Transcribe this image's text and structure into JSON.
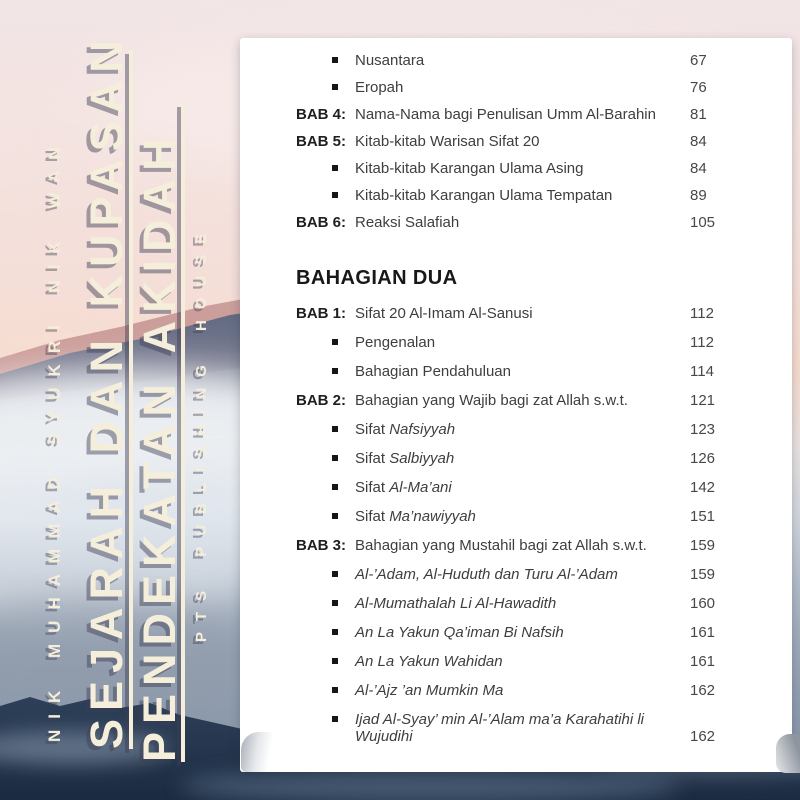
{
  "cover": {
    "author": "NIK MUHAMMAD SYUKRI NIK WAN",
    "title_line1": "SEJARAH DAN KUPASAN",
    "title_line2": "PENDEKATAN AKIDAH",
    "publisher": "PTS PUBLISHING HOUSE"
  },
  "toc": {
    "sections": [
      {
        "heading": null,
        "rows": [
          {
            "text": "Nusantara",
            "page": "67"
          },
          {
            "text": "Eropah",
            "page": "76"
          },
          {
            "label": "BAB 4:",
            "text": "Nama-Nama bagi Penulisan Umm Al-Barahin",
            "page": "81"
          },
          {
            "label": "BAB 5:",
            "text": "Kitab-kitab Warisan Sifat 20",
            "page": "84"
          },
          {
            "text": "Kitab-kitab Karangan Ulama Asing",
            "page": "84"
          },
          {
            "text": "Kitab-kitab Karangan Ulama Tempatan",
            "page": "89"
          },
          {
            "label": "BAB 6:",
            "text": "Reaksi Salafiah",
            "page": "105"
          }
        ]
      },
      {
        "heading": "BAHAGIAN DUA",
        "rows": [
          {
            "label": "BAB 1:",
            "text": "Sifat 20 Al-Imam Al-Sanusi",
            "page": "112"
          },
          {
            "text": "Pengenalan",
            "page": "112"
          },
          {
            "text": "Bahagian Pendahuluan",
            "page": "114"
          },
          {
            "label": "BAB 2:",
            "text": "Bahagian yang Wajib bagi zat Allah s.w.t.",
            "page": "121"
          },
          {
            "prefix": "Sifat ",
            "italic": "Nafsiyyah",
            "page": "123"
          },
          {
            "prefix": "Sifat ",
            "italic": "Salbiyyah",
            "page": "126"
          },
          {
            "prefix": "Sifat ",
            "italic": "Al-Ma’ani",
            "page": "142"
          },
          {
            "prefix": "Sifat ",
            "italic": "Ma’nawiyyah",
            "page": "151"
          },
          {
            "label": "BAB 3:",
            "text": "Bahagian yang Mustahil bagi zat Allah s.w.t.",
            "page": "159"
          },
          {
            "italic": "Al-’Adam, Al-Huduth dan Turu Al-’Adam",
            "page": "159"
          },
          {
            "italic": "Al-Mumathalah Li Al-Hawadith",
            "page": "160"
          },
          {
            "italic": "An La Yakun Qa’iman Bi Nafsih",
            "page": "161"
          },
          {
            "italic": "An La Yakun Wahidan",
            "page": "161"
          },
          {
            "italic": "Al-’Ajz ’an Mumkin Ma",
            "page": "162"
          },
          {
            "italic": "Ijad Al-Syay’ min Al-’Alam ma’a Karahatihi li Wujudihi",
            "page": "162"
          }
        ]
      }
    ]
  },
  "colors": {
    "cream_text": "#f4eedb",
    "text_shadow": "#3e3e54",
    "page_background": "#ffffff",
    "body_text": "#3e3e3e",
    "chapter_label": "#1f1f1f",
    "sky_pink": "#f5e2dc",
    "peach_horizon": "#f7dbce",
    "mist": "#eef1f4",
    "mountain_dark": "#22344e"
  }
}
